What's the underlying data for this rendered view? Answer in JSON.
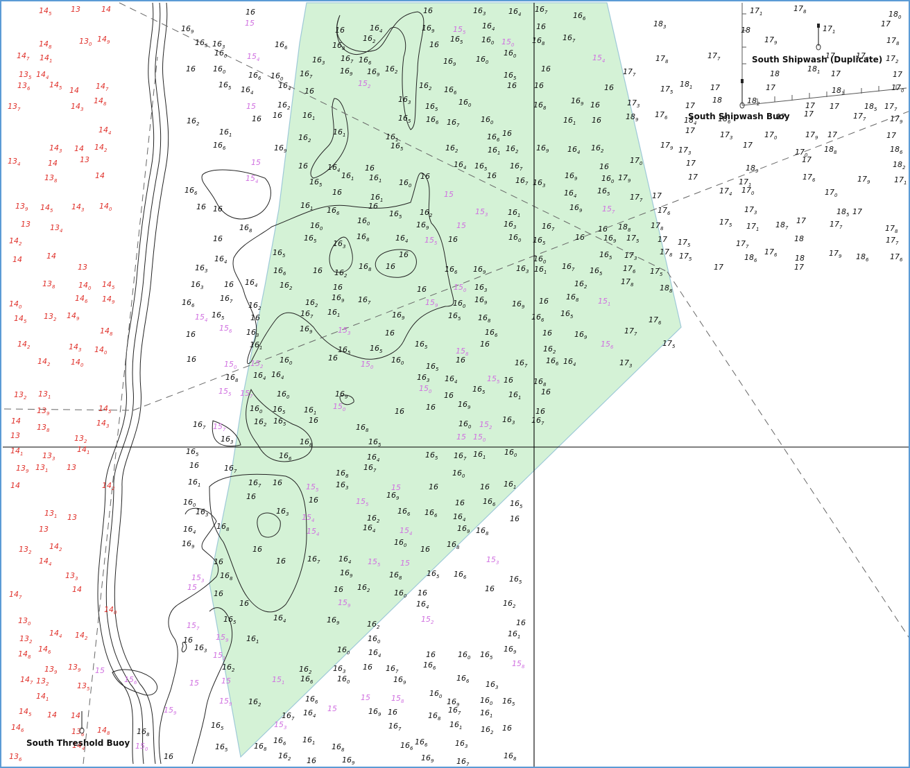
{
  "map": {
    "colors": {
      "shoal": "#e0312b",
      "mid": "#d070e0",
      "deep": "#111111",
      "area_fill": "#d4f2d6",
      "area_edge": "#9ec9d8",
      "grid": "#000000",
      "dashed": "#666666",
      "frame": "#5b9bd5"
    },
    "labels": {
      "south_shipwash_duplicate": "South Shipwash (Duplicate)",
      "south_shipwash_buoy": "South Shipwash Buoy",
      "south_threshold_buoy": "South Threshold Buoy"
    },
    "icons": [
      "buoy-icon",
      "buoy-icon",
      "buoy-icon"
    ]
  }
}
